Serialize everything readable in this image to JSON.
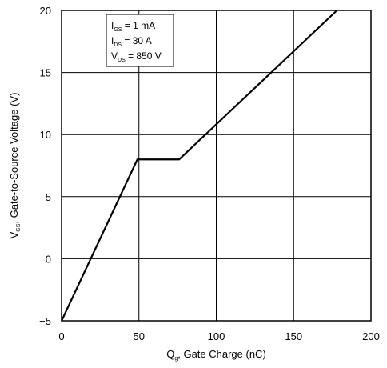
{
  "chart_data": {
    "type": "line",
    "title": "",
    "xlabel": {
      "main": "Q",
      "sub": "g",
      "rest": ", Gate Charge (nC)"
    },
    "ylabel": {
      "main": "V",
      "sub": "GS",
      "rest": ", Gate-to-Source Voltage (V)"
    },
    "xlim": [
      0,
      200
    ],
    "ylim": [
      -5,
      20
    ],
    "xticks": [
      "0",
      "50",
      "100",
      "150",
      "200"
    ],
    "yticks": [
      "−5",
      "0",
      "5",
      "10",
      "15",
      "20"
    ],
    "grid": true,
    "series": [
      {
        "x": [
          0,
          49,
          76,
          178
        ],
        "y": [
          -5,
          8,
          8,
          20
        ]
      }
    ],
    "annotations": [
      {
        "main": "I",
        "sub": "GS",
        "rest": " = 1 mA"
      },
      {
        "main": "I",
        "sub": "DS",
        "rest": " = 30 A"
      },
      {
        "main": "V",
        "sub": "DS",
        "rest": " = 850 V"
      }
    ],
    "colors": {
      "line": "#000000",
      "grid": "#000000"
    }
  }
}
